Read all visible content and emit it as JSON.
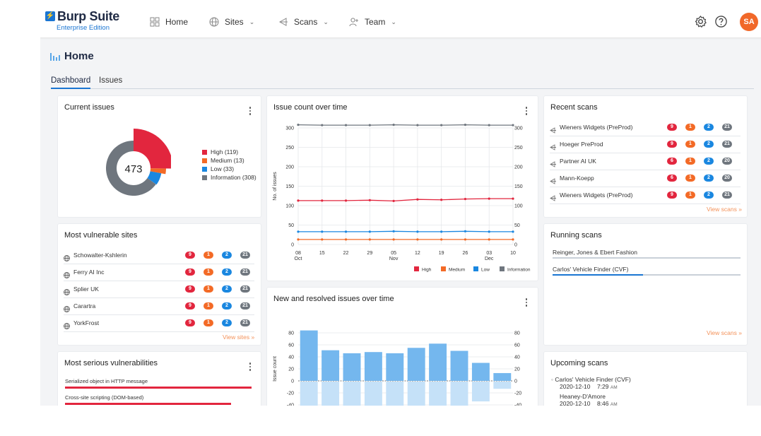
{
  "logo": {
    "name": "Burp Suite",
    "subtitle": "Enterprise Edition"
  },
  "nav": [
    {
      "label": "Home",
      "icon": "grid-icon",
      "chevron": false
    },
    {
      "label": "Sites",
      "icon": "globe-icon",
      "chevron": true
    },
    {
      "label": "Scans",
      "icon": "scan-icon",
      "chevron": true
    },
    {
      "label": "Team",
      "icon": "user-add-icon",
      "chevron": true
    }
  ],
  "user": {
    "initials": "SA",
    "avatar_color": "#f16829"
  },
  "page": {
    "title": "Home"
  },
  "tabs": [
    {
      "label": "Dashboard",
      "active": true
    },
    {
      "label": "Issues",
      "active": false
    }
  ],
  "colors": {
    "high": "#e2263e",
    "medium": "#f36a26",
    "low": "#1a87e0",
    "info": "#6f767e",
    "accent": "#1a75d2"
  },
  "current_issues": {
    "title": "Current issues",
    "total": "473",
    "legend": [
      {
        "key": "high",
        "label": "High (119)",
        "value": 119
      },
      {
        "key": "medium",
        "label": "Medium (13)",
        "value": 13
      },
      {
        "key": "low",
        "label": "Low (33)",
        "value": 33
      },
      {
        "key": "info",
        "label": "Information (308)",
        "value": 308
      }
    ]
  },
  "vulnerable_sites": {
    "title": "Most vulnerable sites",
    "view_label": "View sites »",
    "rows": [
      {
        "name": "Schowalter-Kshlerin",
        "high": "9",
        "medium": "1",
        "low": "2",
        "info": "21"
      },
      {
        "name": "Ferry AI Inc",
        "high": "9",
        "medium": "1",
        "low": "2",
        "info": "21"
      },
      {
        "name": "Splier UK",
        "high": "9",
        "medium": "1",
        "low": "2",
        "info": "21"
      },
      {
        "name": "Carartra",
        "high": "9",
        "medium": "1",
        "low": "2",
        "info": "21"
      },
      {
        "name": "YorkFrost",
        "high": "9",
        "medium": "1",
        "low": "2",
        "info": "21"
      }
    ]
  },
  "serious_vulns": {
    "title": "Most serious vulnerabilities",
    "rows": [
      {
        "name": "Serialized object in HTTP message",
        "fraction": 1.0
      },
      {
        "name": "Cross-site scripting (DOM-based)",
        "fraction": 0.89
      }
    ]
  },
  "recent_scans": {
    "title": "Recent scans",
    "view_label": "View scans »",
    "rows": [
      {
        "name": "Wieners Widgets (PreProd)",
        "high": "9",
        "medium": "1",
        "low": "2",
        "info": "21"
      },
      {
        "name": "Hoeger PreProd",
        "high": "9",
        "medium": "1",
        "low": "2",
        "info": "21"
      },
      {
        "name": "Partner AI UK",
        "high": "6",
        "medium": "1",
        "low": "2",
        "info": "20"
      },
      {
        "name": "Mann-Koepp",
        "high": "6",
        "medium": "1",
        "low": "2",
        "info": "20"
      },
      {
        "name": "Wieners Widgets (PreProd)",
        "high": "9",
        "medium": "1",
        "low": "2",
        "info": "21"
      }
    ]
  },
  "running_scans": {
    "title": "Running scans",
    "view_label": "View scans »",
    "rows": [
      {
        "name": "Reinger, Jones & Ebert Fashion",
        "progress": 0.0
      },
      {
        "name": "Carlos' Vehicle Finder (CVF)",
        "progress": 0.48
      }
    ]
  },
  "upcoming_scans": {
    "title": "Upcoming scans",
    "rows": [
      {
        "name": "Carlos' Vehicle Finder (CVF)",
        "date": "2020-12-10",
        "time": "7:29",
        "ampm": "AM"
      },
      {
        "name": "Heaney-D'Amore",
        "date": "2020-12-10",
        "time": "8:46",
        "ampm": "AM"
      }
    ]
  },
  "chart_data": [
    {
      "id": "issue-count",
      "title": "Issue count over time",
      "type": "line",
      "ylabel": "No. of issues",
      "ylim": [
        0,
        300
      ],
      "yticks": [
        0,
        50,
        100,
        150,
        200,
        250,
        300
      ],
      "x_points": 10,
      "xticks": [
        {
          "index": 0,
          "day": "08",
          "month": "Oct"
        },
        {
          "index": 1,
          "day": "15",
          "month": ""
        },
        {
          "index": 2,
          "day": "22",
          "month": ""
        },
        {
          "index": 3,
          "day": "29",
          "month": ""
        },
        {
          "index": 4,
          "day": "05",
          "month": "Nov"
        },
        {
          "index": 5,
          "day": "12",
          "month": ""
        },
        {
          "index": 6,
          "day": "19",
          "month": ""
        },
        {
          "index": 7,
          "day": "26",
          "month": ""
        },
        {
          "index": 8,
          "day": "03",
          "month": "Dec"
        },
        {
          "index": 9,
          "day": "10",
          "month": ""
        }
      ],
      "grid": true,
      "legend_position": "bottom-right",
      "series": [
        {
          "name": "High",
          "key": "high",
          "values": [
            113,
            113,
            113,
            114,
            112,
            116,
            115,
            117,
            118,
            118
          ]
        },
        {
          "name": "Medium",
          "key": "medium",
          "values": [
            13,
            13,
            13,
            13,
            13,
            13,
            13,
            13,
            13,
            13
          ]
        },
        {
          "name": "Low",
          "key": "low",
          "values": [
            33,
            33,
            33,
            33,
            34,
            33,
            33,
            34,
            33,
            33
          ]
        },
        {
          "name": "Information",
          "key": "info",
          "values": [
            308,
            307,
            307,
            307,
            308,
            307,
            307,
            308,
            307,
            307
          ]
        }
      ]
    },
    {
      "id": "new-resolved",
      "title": "New and resolved issues over time",
      "type": "bar",
      "ylabel": "Issue count",
      "ylim": [
        -40,
        80
      ],
      "yticks": [
        -40,
        -20,
        0,
        20,
        40,
        60,
        80
      ],
      "grid": true,
      "series": [
        {
          "name": "New",
          "values": [
            84,
            51,
            46,
            48,
            46,
            55,
            62,
            50,
            30,
            13
          ]
        },
        {
          "name": "Resolved",
          "values": [
            -40,
            -40,
            -40,
            -40,
            -40,
            -40,
            -40,
            -40,
            -33,
            -12
          ]
        }
      ]
    }
  ]
}
